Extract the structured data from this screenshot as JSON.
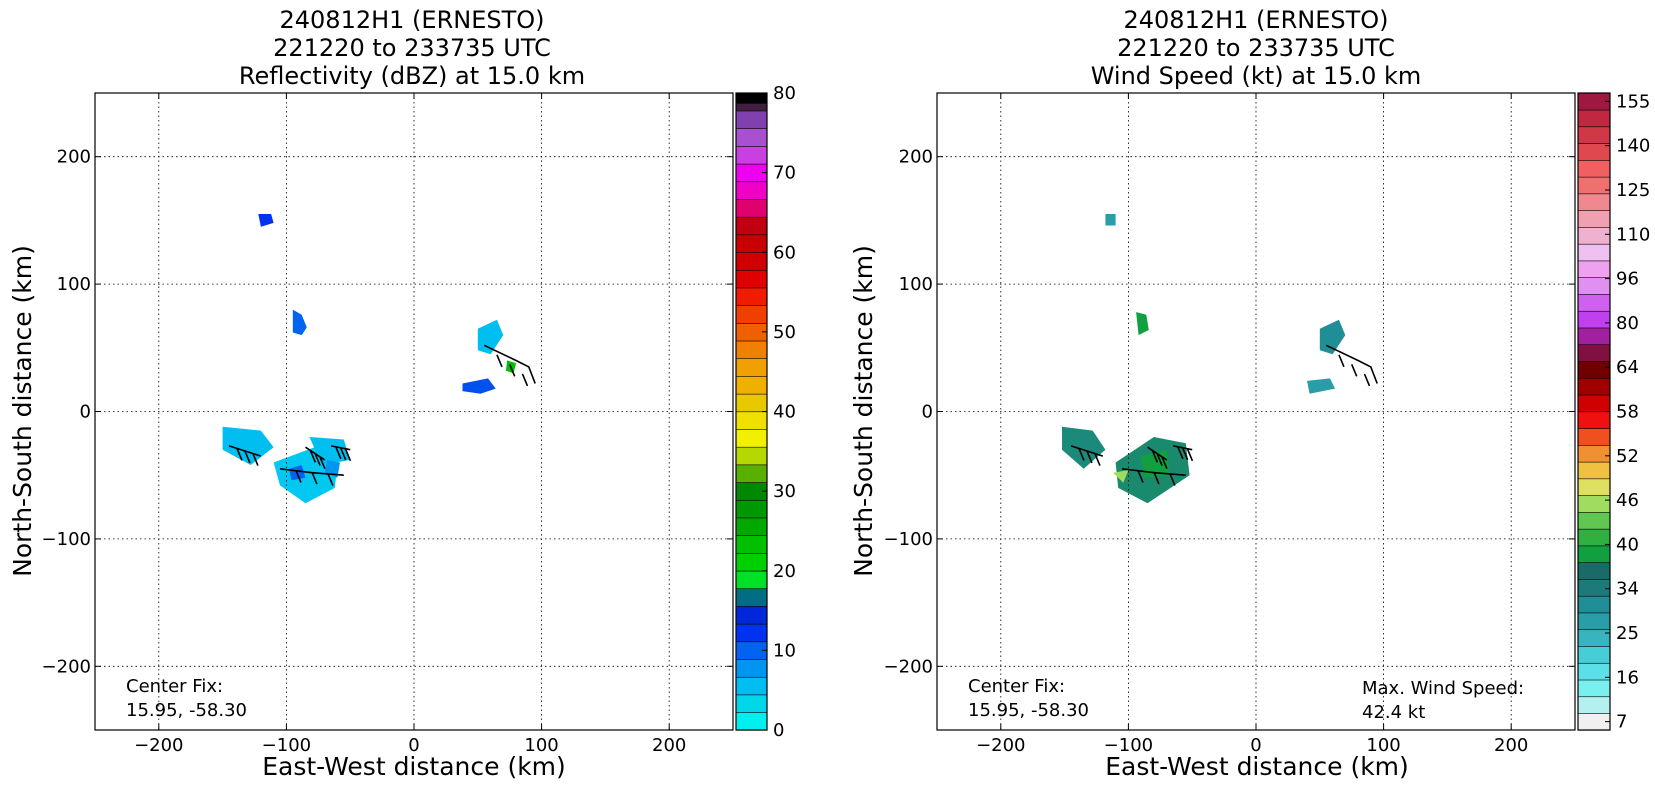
{
  "charts": [
    {
      "title_lines": [
        "240812H1 (ERNESTO)",
        "221220 to 233735 UTC",
        "Reflectivity (dBZ) at 15.0 km"
      ],
      "xlabel": "East-West distance (km)",
      "ylabel": "North-South distance (km)",
      "annotation_left": [
        "Center Fix:",
        "15.95, -58.30"
      ],
      "annotation_right": [],
      "colorbar_ticks": [
        "0",
        "10",
        "20",
        "30",
        "40",
        "50",
        "60",
        "70",
        "80"
      ]
    },
    {
      "title_lines": [
        "240812H1 (ERNESTO)",
        "221220 to 233735 UTC",
        "Wind Speed (kt) at 15.0 km"
      ],
      "xlabel": "East-West distance (km)",
      "ylabel": "North-South distance (km)",
      "annotation_left": [
        "Center Fix:",
        "15.95, -58.30"
      ],
      "annotation_right": [
        "Max. Wind Speed:",
        "42.4 kt"
      ],
      "colorbar_ticks": [
        "7",
        "16",
        "25",
        "34",
        "40",
        "46",
        "52",
        "58",
        "64",
        "80",
        "96",
        "110",
        "125",
        "140",
        "155"
      ]
    }
  ],
  "chart_data": [
    {
      "type": "heatmap",
      "title": "240812H1 (ERNESTO) 221220 to 233735 UTC Reflectivity (dBZ) at 15.0 km",
      "xlabel": "East-West distance (km)",
      "ylabel": "North-South distance (km)",
      "xlim": [
        -250,
        250
      ],
      "ylim": [
        -250,
        250
      ],
      "xticks": [
        -200,
        -100,
        0,
        100,
        200
      ],
      "yticks": [
        -200,
        -100,
        0,
        100,
        200
      ],
      "grid": true,
      "colorbar": {
        "label": "Reflectivity (dBZ)",
        "min": 0,
        "max": 80,
        "step": 2.5,
        "ticks": [
          0,
          10,
          20,
          30,
          40,
          50,
          60,
          70,
          80
        ],
        "colors": [
          "#00f0f0",
          "#00d8ea",
          "#00bef0",
          "#0096f0",
          "#0064f0",
          "#0032f0",
          "#0028d8",
          "#006e82",
          "#00e024",
          "#00d000",
          "#00c000",
          "#00a800",
          "#009800",
          "#008800",
          "#5ab000",
          "#b4d800",
          "#f0f000",
          "#f0e000",
          "#e8c800",
          "#f0b000",
          "#f0a000",
          "#f08000",
          "#f06000",
          "#f04000",
          "#f01c00",
          "#e00000",
          "#d00000",
          "#c80000",
          "#c00010",
          "#e0006e",
          "#f000c8",
          "#f000f0",
          "#c840e0",
          "#a850d0",
          "#8040b0",
          "#402040"
        ],
        "top_color": "#000000"
      },
      "echo_regions": [
        {
          "x": -117,
          "y": 150,
          "dbz": 10
        },
        {
          "x": -90,
          "y": 68,
          "dbz": 10
        },
        {
          "x": 60,
          "y": 55,
          "dbz": 5
        },
        {
          "x": 50,
          "y": 20,
          "dbz": 10
        },
        {
          "x": 78,
          "y": 35,
          "dbz": 25
        },
        {
          "x": -130,
          "y": -25,
          "dbz": 5
        },
        {
          "x": -85,
          "y": -55,
          "dbz": 5
        },
        {
          "x": -65,
          "y": -40,
          "dbz": 5
        }
      ],
      "center_fix": "15.95, -58.30"
    },
    {
      "type": "heatmap",
      "title": "240812H1 (ERNESTO) 221220 to 233735 UTC Wind Speed (kt) at 15.0 km",
      "xlabel": "East-West distance (km)",
      "ylabel": "North-South distance (km)",
      "xlim": [
        -250,
        250
      ],
      "ylim": [
        -250,
        250
      ],
      "xticks": [
        -200,
        -100,
        0,
        100,
        200
      ],
      "yticks": [
        -200,
        -100,
        0,
        100,
        200
      ],
      "grid": true,
      "colorbar": {
        "label": "Wind Speed (kt)",
        "ticks": [
          7,
          16,
          25,
          34,
          40,
          46,
          52,
          58,
          64,
          80,
          96,
          110,
          125,
          140,
          155
        ],
        "colors": [
          "#f0f0f0",
          "#b4f0f0",
          "#78f0f0",
          "#5ae0e6",
          "#46cdd6",
          "#37b4bf",
          "#2a9ea8",
          "#1f8e96",
          "#1c7a7a",
          "#1a6a6a",
          "#10a040",
          "#30b040",
          "#60c850",
          "#a0dc60",
          "#e0e060",
          "#f0c040",
          "#f09030",
          "#f05020",
          "#f01010",
          "#d00000",
          "#a00000",
          "#700000",
          "#801040",
          "#a020a0",
          "#c040f0",
          "#d060f0",
          "#e090f0",
          "#f0a0f0",
          "#f0c0f0",
          "#f0b0d0",
          "#f0a0b0",
          "#f08890",
          "#f07070",
          "#f06060",
          "#e04850",
          "#d03848",
          "#c02840",
          "#a01840"
        ]
      },
      "echo_regions": [
        {
          "x": -115,
          "y": 150,
          "kt": 25
        },
        {
          "x": -88,
          "y": 68,
          "kt": 30
        },
        {
          "x": 60,
          "y": 55,
          "kt": 25
        },
        {
          "x": 50,
          "y": 20,
          "kt": 25
        },
        {
          "x": -135,
          "y": -25,
          "kt": 30
        },
        {
          "x": -75,
          "y": -45,
          "kt": 34
        }
      ],
      "center_fix": "15.95, -58.30",
      "max_wind_speed": "42.4 kt"
    }
  ]
}
